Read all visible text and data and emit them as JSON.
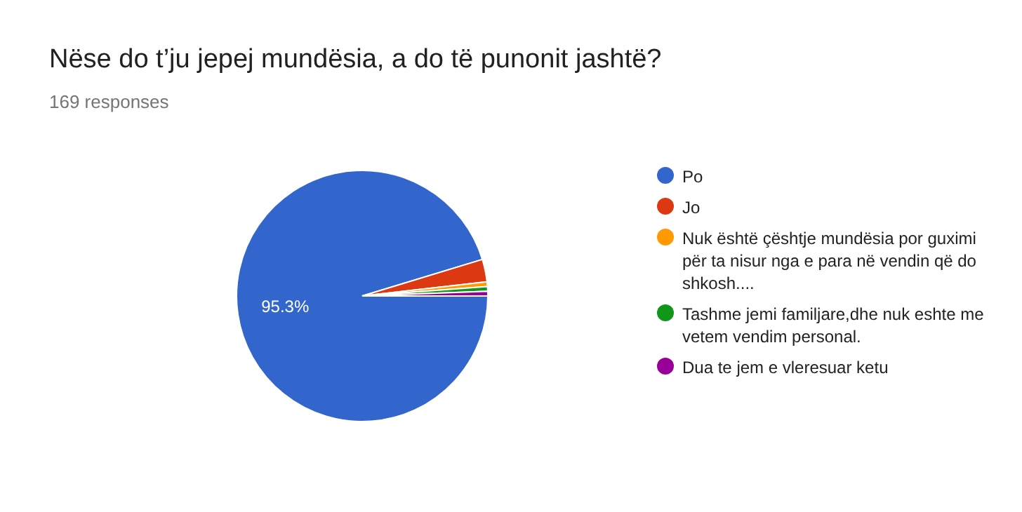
{
  "chart_data": {
    "type": "pie",
    "title": "Nëse do t’ju jepej mundësia, a do të punonit jashtë?",
    "subtitle": "169 responses",
    "categories": [
      "Po",
      "Jo",
      "Nuk është çështje mundësia por guximi për ta nisur nga e para në vendin që do shkosh....",
      "Tashme jemi familjare,dhe nuk eshte me vetem vendim personal.",
      "Dua te jem e vleresuar ketu"
    ],
    "values": [
      95.3,
      2.9,
      0.6,
      0.6,
      0.6
    ],
    "colors": [
      "#3366cc",
      "#dc3912",
      "#ff9900",
      "#109618",
      "#990099"
    ],
    "value_labels": [
      "95.3%",
      null,
      null,
      null,
      null
    ],
    "legend": "right"
  }
}
